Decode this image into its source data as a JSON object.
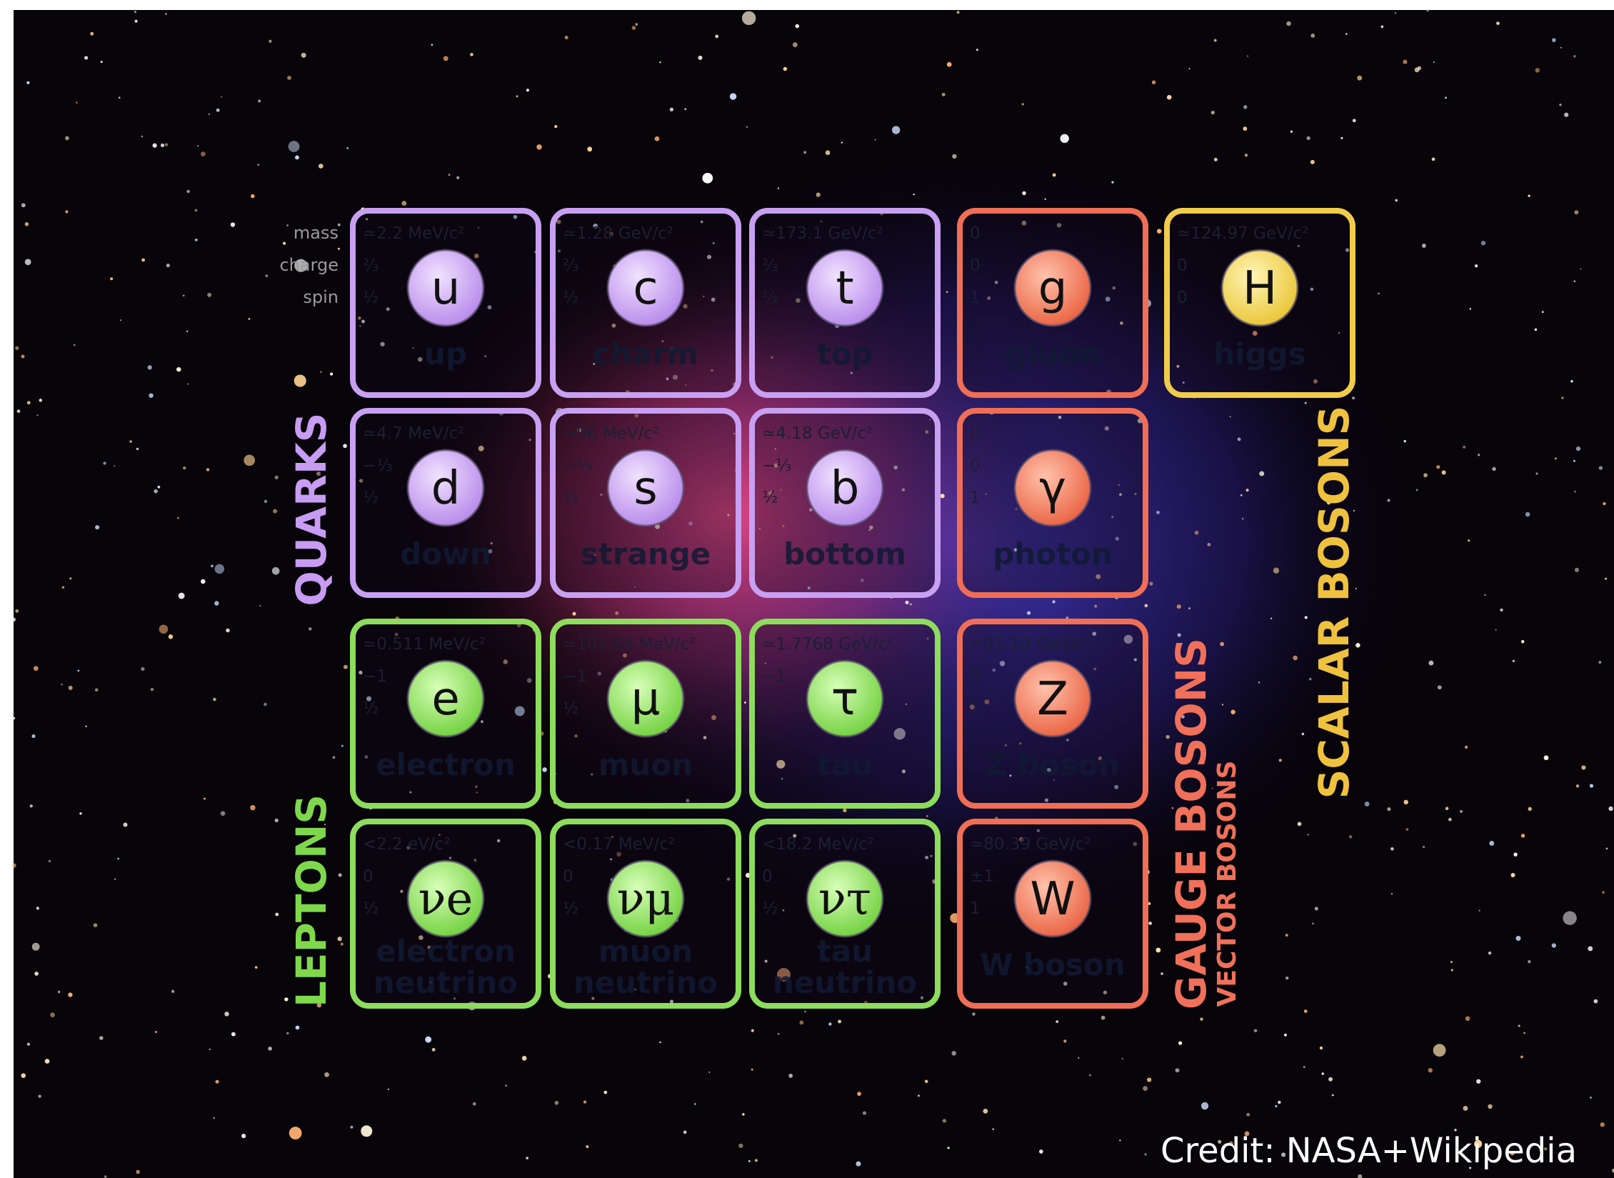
{
  "row_labels": {
    "mass": "mass",
    "charge": "charge",
    "spin": "spin"
  },
  "particles": [
    {
      "symbol": "u",
      "name": [
        "up"
      ],
      "mass": "≃2.2 MeV/c²",
      "charge": "⅔",
      "spin": "½"
    },
    {
      "symbol": "c",
      "name": [
        "charm"
      ],
      "mass": "≃1.28 GeV/c²",
      "charge": "⅔",
      "spin": "½"
    },
    {
      "symbol": "t",
      "name": [
        "top"
      ],
      "mass": "≃173.1 GeV/c²",
      "charge": "⅔",
      "spin": "½"
    },
    {
      "symbol": "g",
      "name": [
        "gluon"
      ],
      "mass": "0",
      "charge": "0",
      "spin": "1"
    },
    {
      "symbol": "H",
      "name": [
        "higgs"
      ],
      "mass": "≃124.97 GeV/c²",
      "charge": "0",
      "spin": "0"
    },
    {
      "symbol": "d",
      "name": [
        "down"
      ],
      "mass": "≃4.7 MeV/c²",
      "charge": "−⅓",
      "spin": "½"
    },
    {
      "symbol": "s",
      "name": [
        "strange"
      ],
      "mass": "≃96 MeV/c²",
      "charge": "−⅓",
      "spin": "½"
    },
    {
      "symbol": "b",
      "name": [
        "bottom"
      ],
      "mass": "≃4.18 GeV/c²",
      "charge": "−⅓",
      "spin": "½"
    },
    {
      "symbol": "γ",
      "name": [
        "photon"
      ],
      "mass": "0",
      "charge": "0",
      "spin": "1"
    },
    {
      "symbol": "e",
      "name": [
        "electron"
      ],
      "mass": "≃0.511 MeV/c²",
      "charge": "−1",
      "spin": "½"
    },
    {
      "symbol": "μ",
      "name": [
        "muon"
      ],
      "mass": "≃105.66 MeV/c²",
      "charge": "−1",
      "spin": "½"
    },
    {
      "symbol": "τ",
      "name": [
        "tau"
      ],
      "mass": "≃1.7768 GeV/c²",
      "charge": "−1",
      "spin": "½"
    },
    {
      "symbol": "Z",
      "name": [
        "Z boson"
      ],
      "mass": "≃91.19 GeV/c²",
      "charge": "0",
      "spin": "1"
    },
    {
      "symbol": "νe",
      "name": [
        "electron",
        "neutrino"
      ],
      "mass": "<2.2 eV/c²",
      "charge": "0",
      "spin": "½"
    },
    {
      "symbol": "νμ",
      "name": [
        "muon",
        "neutrino"
      ],
      "mass": "<0.17 MeV/c²",
      "charge": "0",
      "spin": "½"
    },
    {
      "symbol": "ντ",
      "name": [
        "tau",
        "neutrino"
      ],
      "mass": "<18.2 MeV/c²",
      "charge": "0",
      "spin": "½"
    },
    {
      "symbol": "W",
      "name": [
        "W boson"
      ],
      "mass": "≃80.39 GeV/c²",
      "charge": "±1",
      "spin": "1"
    }
  ],
  "groups": {
    "quarks": "QUARKS",
    "leptons": "LEPTONS",
    "gauge_bosons": "GAUGE BOSONS",
    "vector_bosons": "VECTOR BOSONS",
    "scalar_bosons": "SCALAR BOSONS"
  },
  "credit": "Credit: NASA+Wikipedia"
}
